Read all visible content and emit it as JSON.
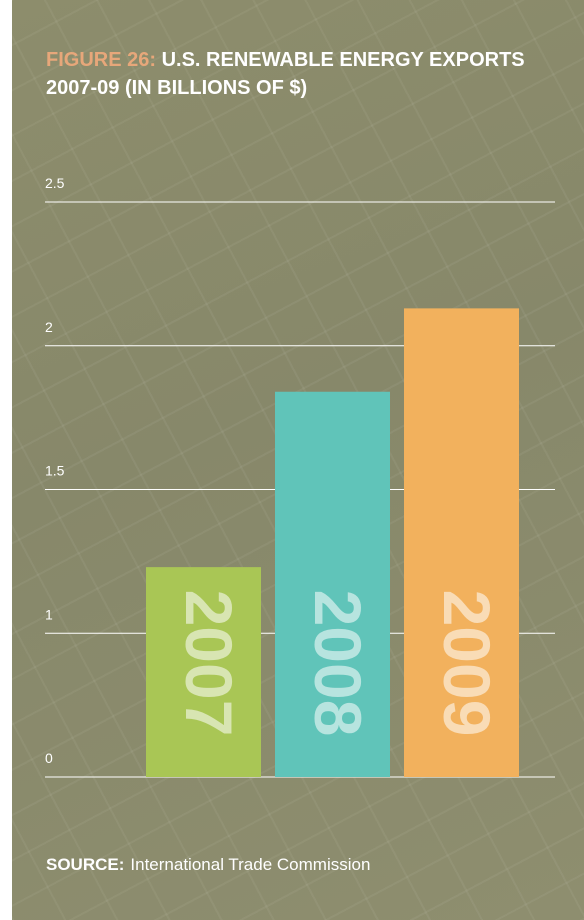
{
  "chart_data": {
    "type": "bar",
    "title_prefix": "FIGURE 26:",
    "title": "U.S. RENEWABLE ENERGY EXPORTS 2007-09 (IN BILLIONS OF $)",
    "categories": [
      "2007",
      "2008",
      "2009"
    ],
    "values": [
      1.23,
      1.84,
      2.13
    ],
    "colors": [
      "#a9c655",
      "#60c4b9",
      "#f2b15d"
    ],
    "ylim": [
      0,
      2.5
    ],
    "yticks": [
      0,
      1,
      1.5,
      2,
      2.5
    ],
    "grid": true,
    "source_label": "SOURCE:",
    "source": "International Trade Commission"
  }
}
